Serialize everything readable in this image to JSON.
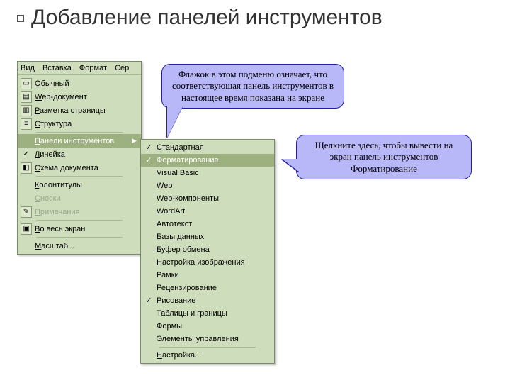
{
  "title": "Добавление панелей инструментов",
  "colors": {
    "menu_bg": "#cedebd",
    "menu_border": "#7a8a6a",
    "menu_hover": "#9db07f",
    "callout_bg": "#b8b8f8",
    "callout_border": "#2020a0",
    "page_bg": "#ffffff"
  },
  "menubar_header": {
    "items": [
      "Вид",
      "Вставка",
      "Формат",
      "Сер"
    ]
  },
  "main_menu": {
    "groups": [
      [
        {
          "icon": "page-normal-icon",
          "glyph": "▭",
          "label": "Обычный"
        },
        {
          "icon": "page-web-icon",
          "glyph": "▤",
          "label": "Web-документ"
        },
        {
          "icon": "page-layout-icon",
          "glyph": "▥",
          "label": "Разметка страницы"
        },
        {
          "icon": "page-outline-icon",
          "glyph": "≡",
          "label": "Структура"
        }
      ],
      [
        {
          "icon": null,
          "glyph": "",
          "label": "Панели инструментов",
          "hover": true,
          "arrow": true
        },
        {
          "icon": "check-icon",
          "glyph": "✓",
          "label": "Линейка"
        },
        {
          "icon": "docmap-icon",
          "glyph": "◧",
          "label": "Схема документа"
        }
      ],
      [
        {
          "icon": null,
          "glyph": "",
          "label": "Колонтитулы"
        },
        {
          "icon": null,
          "glyph": "",
          "label": "Сноски",
          "disabled": true
        },
        {
          "icon": "comment-icon",
          "glyph": "✎",
          "label": "Примечания",
          "disabled": true
        }
      ],
      [
        {
          "icon": "fullscreen-icon",
          "glyph": "▣",
          "label": "Во весь экран"
        }
      ],
      [
        {
          "icon": null,
          "glyph": "",
          "label": "Масштаб..."
        }
      ]
    ]
  },
  "submenu": {
    "items": [
      {
        "checked": true,
        "label": "Стандартная"
      },
      {
        "checked": true,
        "label": "Форматирование",
        "hover": true
      },
      {
        "checked": false,
        "label": "Visual Basic"
      },
      {
        "checked": false,
        "label": "Web"
      },
      {
        "checked": false,
        "label": "Web-компоненты"
      },
      {
        "checked": false,
        "label": "WordArt"
      },
      {
        "checked": false,
        "label": "Автотекст"
      },
      {
        "checked": false,
        "label": "Базы данных"
      },
      {
        "checked": false,
        "label": "Буфер обмена"
      },
      {
        "checked": false,
        "label": "Настройка изображения"
      },
      {
        "checked": false,
        "label": "Рамки"
      },
      {
        "checked": false,
        "label": "Рецензирование"
      },
      {
        "checked": true,
        "label": "Рисование"
      },
      {
        "checked": false,
        "label": "Таблицы и границы"
      },
      {
        "checked": false,
        "label": "Формы"
      },
      {
        "checked": false,
        "label": "Элементы управления"
      }
    ],
    "footer": {
      "label": "Настройка..."
    }
  },
  "callouts": {
    "c1": "Флажок в этом подменю означает, что соответствующая панель инструментов в настоящее время показана на экране",
    "c2": "Щелкните здесь, чтобы вывести на экран панель инструментов Форматирование"
  }
}
